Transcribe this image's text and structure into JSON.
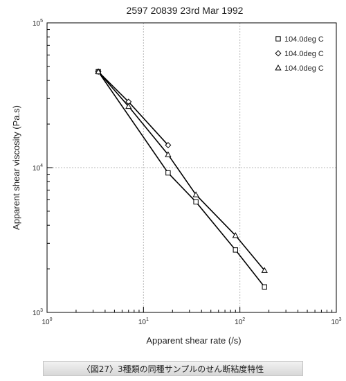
{
  "caption": "〈図27〉3種類の同種サンプルのせん断粘度特性",
  "chart_data": {
    "type": "scatter",
    "title": "2597   20839   23rd Mar 1992",
    "xlabel": "Apparent shear rate (/s)",
    "ylabel": "Apparent shear viscosity (Pa.s)",
    "xscale": "log",
    "yscale": "log",
    "xlim": [
      1,
      1000
    ],
    "ylim": [
      1000,
      100000
    ],
    "x_ticks": [
      {
        "base": "10",
        "exp": "0",
        "value": 1
      },
      {
        "base": "10",
        "exp": "1",
        "value": 10
      },
      {
        "base": "10",
        "exp": "2",
        "value": 100
      },
      {
        "base": "10",
        "exp": "3",
        "value": 1000
      }
    ],
    "y_ticks": [
      {
        "base": "10",
        "exp": "3",
        "value": 1000
      },
      {
        "base": "10",
        "exp": "4",
        "value": 10000
      },
      {
        "base": "10",
        "exp": "5",
        "value": 100000
      }
    ],
    "grid": "dashed at decades",
    "legend_position": "top-right",
    "series": [
      {
        "name": "104.0deg C",
        "marker": "square",
        "x": [
          3.4,
          18,
          35,
          90,
          180
        ],
        "y": [
          46000,
          9200,
          5800,
          2700,
          1500
        ]
      },
      {
        "name": "104.0deg C",
        "marker": "diamond",
        "x": [
          3.4,
          7,
          18
        ],
        "y": [
          46000,
          28500,
          14300
        ]
      },
      {
        "name": "104.0deg C",
        "marker": "triangle",
        "x": [
          3.4,
          7,
          18,
          35,
          90,
          180
        ],
        "y": [
          46000,
          26500,
          12300,
          6500,
          3400,
          1950
        ]
      }
    ],
    "colors": {
      "plot": "#000000",
      "grid": "#b8b8b8"
    }
  }
}
